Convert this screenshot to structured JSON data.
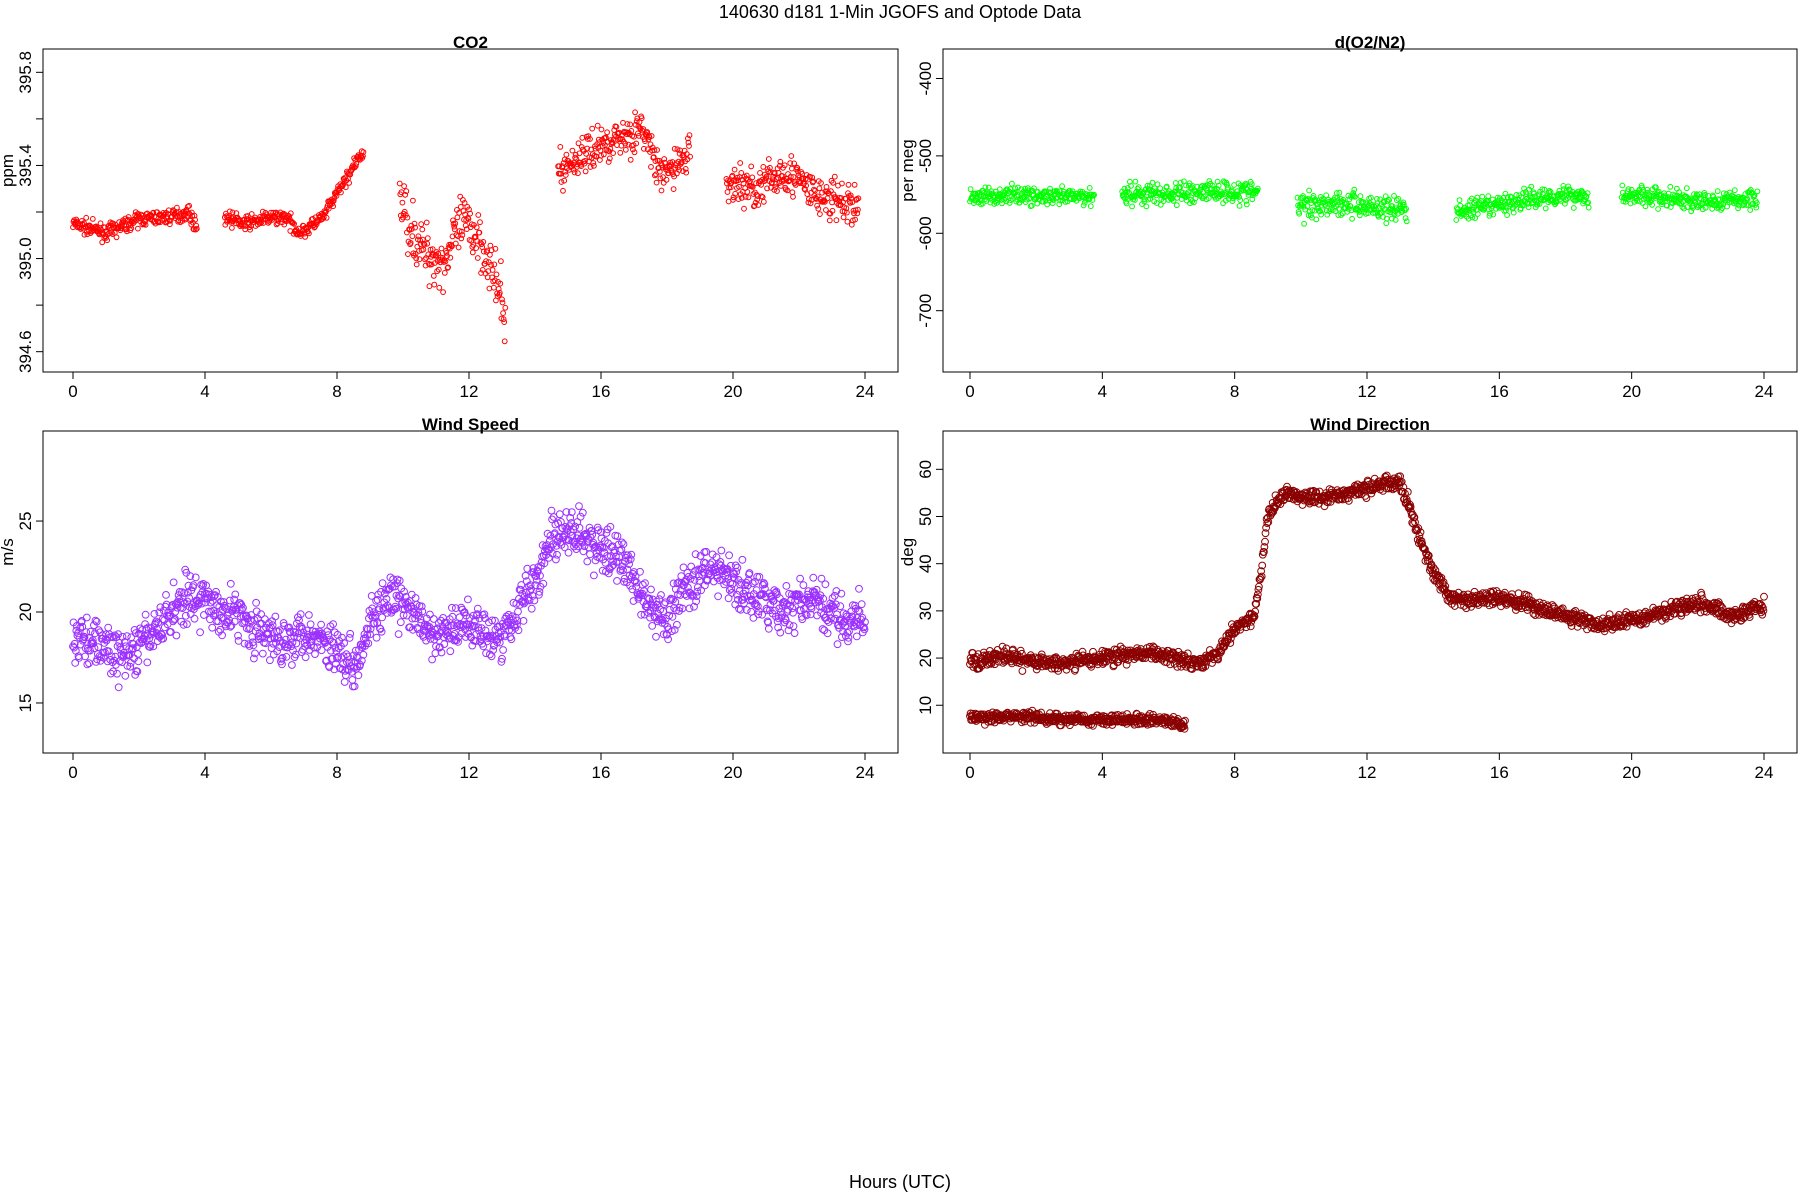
{
  "page": {
    "title": "140630   d181   1-Min  JGOFS and Optode Data",
    "xlabel": "Hours (UTC)"
  },
  "chart_data": [
    {
      "id": "co2",
      "type": "scatter",
      "title": "CO2",
      "ylabel": "ppm",
      "color": "#ff0000",
      "marker": "small-open-circle",
      "xlim": [
        0,
        24
      ],
      "ylim": [
        394.56,
        395.84
      ],
      "xticks": [
        0,
        4,
        8,
        12,
        16,
        20,
        24
      ],
      "yticks": [
        394.6,
        395.0,
        395.4,
        395.8
      ],
      "ytick_labels": [
        "394.6",
        "395.0",
        "395.4",
        "395.8"
      ],
      "yminor": [
        394.8,
        395.2,
        395.6
      ],
      "segments": [
        {
          "x": [
            0.0,
            1.0,
            2.0,
            3.0,
            3.5,
            3.75
          ],
          "y": [
            395.15,
            395.11,
            395.17,
            395.18,
            395.2,
            395.13
          ],
          "noise": 0.03
        },
        {
          "x": [
            4.6,
            5.2,
            5.8,
            6.4,
            6.9,
            7.6,
            8.0,
            8.8
          ],
          "y": [
            395.18,
            395.15,
            395.17,
            395.18,
            395.11,
            395.18,
            395.28,
            395.46
          ],
          "noise": 0.03
        },
        {
          "x": [
            9.9,
            10.5,
            11.2,
            11.8,
            12.3,
            12.7,
            13.1
          ],
          "y": [
            395.25,
            395.05,
            394.98,
            395.15,
            395.1,
            394.95,
            394.75
          ],
          "noise": 0.12
        },
        {
          "x": [
            14.7,
            15.5,
            16.5,
            17.3,
            17.8,
            18.7
          ],
          "y": [
            395.37,
            395.45,
            395.52,
            395.55,
            395.35,
            395.45
          ],
          "noise": 0.08
        },
        {
          "x": [
            19.8,
            20.8,
            21.6,
            22.5,
            23.8
          ],
          "y": [
            395.33,
            395.3,
            395.38,
            395.27,
            395.22
          ],
          "noise": 0.09
        }
      ]
    },
    {
      "id": "do2n2",
      "type": "scatter",
      "title": "d(O2/N2)",
      "ylabel": "per meg",
      "color": "#00ff00",
      "marker": "small-open-circle",
      "xlim": [
        0,
        24
      ],
      "ylim": [
        -765,
        -380
      ],
      "xticks": [
        0,
        4,
        8,
        12,
        16,
        20,
        24
      ],
      "yticks": [
        -700,
        -600,
        -500,
        -400
      ],
      "ytick_labels": [
        "-700",
        "-600",
        "-500",
        "-400"
      ],
      "yminor": [],
      "segments": [
        {
          "x": [
            0.0,
            1.5,
            2.5,
            3.75
          ],
          "y": [
            -553,
            -550,
            -554,
            -552
          ],
          "noise": 11
        },
        {
          "x": [
            4.6,
            6.0,
            7.2,
            8.7
          ],
          "y": [
            -548,
            -550,
            -545,
            -547
          ],
          "noise": 15
        },
        {
          "x": [
            9.9,
            11.0,
            12.0,
            13.2
          ],
          "y": [
            -565,
            -560,
            -565,
            -570
          ],
          "noise": 17
        },
        {
          "x": [
            14.7,
            15.8,
            17.0,
            18.0,
            18.7
          ],
          "y": [
            -572,
            -565,
            -555,
            -550,
            -553
          ],
          "noise": 13
        },
        {
          "x": [
            19.7,
            20.7,
            22.0,
            23.8
          ],
          "y": [
            -550,
            -553,
            -560,
            -555
          ],
          "noise": 13
        }
      ]
    },
    {
      "id": "wind-speed",
      "type": "scatter",
      "title": "Wind Speed",
      "ylabel": "m/s",
      "color": "#9b30ff",
      "marker": "open-circle",
      "xlim": [
        0,
        24
      ],
      "ylim": [
        12.8,
        29.4
      ],
      "xticks": [
        0,
        4,
        8,
        12,
        16,
        20,
        24
      ],
      "yticks": [
        15,
        20,
        25
      ],
      "ytick_labels": [
        "15",
        "20",
        "25"
      ],
      "yminor": [],
      "segments": [
        {
          "x": [
            0,
            0.5,
            1.0,
            1.5,
            2.0,
            2.5,
            3.0,
            3.5,
            4.0,
            4.5,
            5.0,
            5.5,
            6.0,
            6.5,
            7.0,
            7.5,
            8.0,
            8.5,
            9.0,
            9.5,
            10.0,
            10.5,
            11.0,
            11.5,
            12.0,
            12.5,
            13.0,
            13.5,
            14.0,
            14.5,
            15.0,
            15.5,
            16.0,
            16.5,
            17.0,
            17.5,
            18.0,
            18.5,
            19.0,
            19.5,
            20.0,
            20.5,
            21.0,
            21.5,
            22.0,
            22.5,
            23.0,
            23.5,
            24.0
          ],
          "y": [
            18.5,
            18.5,
            18.0,
            17.5,
            18.0,
            19.0,
            20.0,
            21.0,
            20.5,
            20.0,
            20.0,
            19.0,
            18.5,
            18.5,
            19.0,
            18.5,
            18.0,
            17.0,
            19.5,
            20.5,
            20.5,
            19.5,
            18.5,
            19.0,
            19.5,
            19.0,
            18.5,
            20.5,
            21.5,
            24.0,
            24.5,
            24.0,
            23.5,
            23.0,
            22.0,
            20.0,
            19.5,
            21.5,
            22.0,
            22.5,
            21.5,
            21.0,
            20.5,
            20.0,
            20.5,
            20.5,
            20.0,
            19.5,
            19.5
          ],
          "noise": 1.3
        }
      ]
    },
    {
      "id": "wind-direction",
      "type": "scatter",
      "title": "Wind Direction",
      "ylabel": "deg",
      "color": "#8b0000",
      "marker": "open-circle",
      "xlim": [
        0,
        24
      ],
      "ylim": [
        2,
        66
      ],
      "xticks": [
        0,
        4,
        8,
        12,
        16,
        20,
        24
      ],
      "yticks": [
        10,
        20,
        30,
        40,
        50,
        60
      ],
      "ytick_labels": [
        "10",
        "20",
        "30",
        "40",
        "50",
        "60"
      ],
      "yminor": [],
      "segments": [
        {
          "x": [
            0,
            1.0,
            2.0,
            3.0,
            4.0,
            5.0,
            6.0,
            7.0,
            7.6,
            8.0,
            8.6,
            8.8,
            9.0,
            9.5,
            10.5,
            11.5,
            12.5,
            13.0,
            13.3,
            13.6,
            14.0,
            14.5,
            15.0,
            16.0,
            17.0,
            18.0,
            19.0,
            20.0,
            21.0,
            22.0,
            23.0,
            24.0
          ],
          "y": [
            19,
            20.5,
            19,
            19,
            20,
            21,
            20.5,
            19,
            22,
            26,
            29,
            38,
            50,
            55,
            54,
            55,
            57,
            57,
            52,
            45,
            38,
            33,
            32,
            33,
            31,
            29,
            27,
            28,
            30,
            32,
            29,
            31
          ],
          "noise": 1.6
        },
        {
          "x": [
            0,
            1.5,
            3.0,
            4.5,
            5.5,
            6.5
          ],
          "y": [
            7.5,
            7.5,
            7.0,
            7.0,
            7.0,
            6.0
          ],
          "noise": 1.2
        }
      ]
    }
  ]
}
